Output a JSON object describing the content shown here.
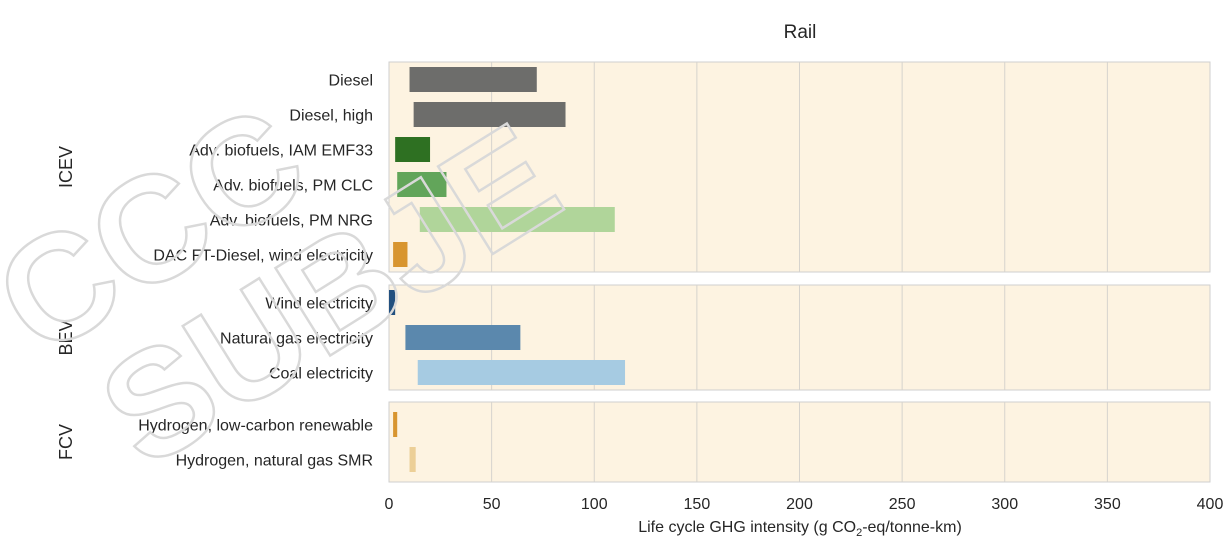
{
  "chart_data": {
    "type": "bar",
    "orientation": "horizontal",
    "title": "Rail",
    "xlabel_parts": {
      "before": "Life cycle GHG intensity (g CO",
      "sub": "2",
      "after": "-eq/tonne-km)"
    },
    "xlim": [
      0,
      400
    ],
    "xticks": [
      0,
      50,
      100,
      150,
      200,
      250,
      300,
      350,
      400
    ],
    "grid": true,
    "panel_background": "#fdf3e1",
    "groups": [
      {
        "name": "ICEV",
        "bars": [
          {
            "label": "Diesel",
            "start": 10,
            "end": 72,
            "color": "#6d6d6b"
          },
          {
            "label": "Diesel, high",
            "start": 12,
            "end": 86,
            "color": "#6d6d6b"
          },
          {
            "label": "Adv. biofuels, IAM EMF33",
            "start": 3,
            "end": 20,
            "color": "#2e7022"
          },
          {
            "label": "Adv. biofuels, PM CLC",
            "start": 4,
            "end": 28,
            "color": "#62a55a"
          },
          {
            "label": "Adv. biofuels, PM NRG",
            "start": 15,
            "end": 110,
            "color": "#b0d59a"
          },
          {
            "label": "DAC FT-Diesel, wind electricity",
            "start": 2,
            "end": 9,
            "color": "#d8952f"
          }
        ]
      },
      {
        "name": "BEV",
        "bars": [
          {
            "label": "Wind electricity",
            "start": 0,
            "end": 3,
            "color": "#22507f"
          },
          {
            "label": "Natural gas electricity",
            "start": 8,
            "end": 64,
            "color": "#5b88ad"
          },
          {
            "label": "Coal electricity",
            "start": 14,
            "end": 115,
            "color": "#a6cbe2"
          }
        ]
      },
      {
        "name": "FCV",
        "bars": [
          {
            "label": "Hydrogen, low-carbon renewable",
            "start": 2,
            "end": 4,
            "color": "#d8952f"
          },
          {
            "label": "Hydrogen, natural gas SMR",
            "start": 10,
            "end": 13,
            "color": "#eccf97"
          }
        ]
      }
    ]
  }
}
